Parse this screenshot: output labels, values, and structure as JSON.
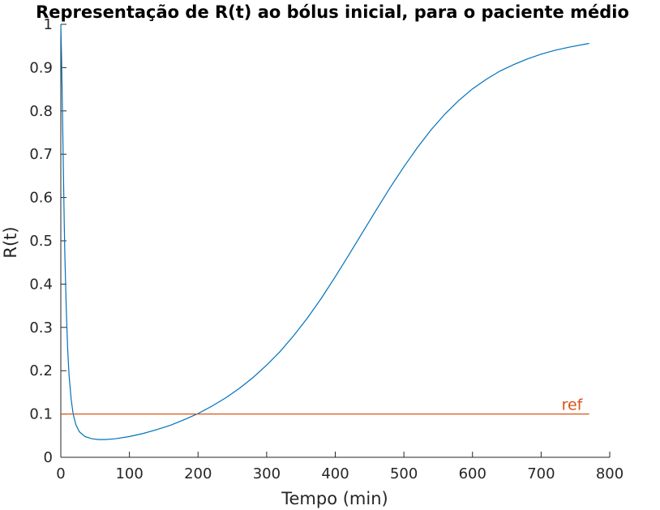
{
  "chart_data": {
    "type": "line",
    "title": "Representação de R(t) ao bólus inicial, para o paciente médio",
    "xlabel": "Tempo (min)",
    "ylabel": "R(t)",
    "xlim": [
      0,
      800
    ],
    "ylim": [
      0,
      1
    ],
    "xticks": [
      "0",
      "100",
      "200",
      "300",
      "400",
      "500",
      "600",
      "700",
      "800"
    ],
    "yticks": [
      "0",
      "0.1",
      "0.2",
      "0.3",
      "0.4",
      "0.5",
      "0.6",
      "0.7",
      "0.8",
      "0.9",
      "1"
    ],
    "grid": false,
    "series": [
      {
        "color": "#0072BD",
        "x": [
          0,
          1,
          2,
          3,
          4,
          5,
          6,
          8,
          10,
          12,
          15,
          18,
          22,
          27,
          35,
          45,
          55,
          65,
          80,
          100,
          120,
          140,
          160,
          180,
          200,
          220,
          240,
          260,
          280,
          300,
          320,
          340,
          360,
          380,
          400,
          420,
          440,
          460,
          480,
          500,
          520,
          540,
          560,
          580,
          600,
          620,
          640,
          660,
          680,
          700,
          720,
          740,
          770
        ],
        "y": [
          1.0,
          0.93,
          0.84,
          0.74,
          0.64,
          0.54,
          0.46,
          0.34,
          0.25,
          0.19,
          0.135,
          0.1,
          0.075,
          0.059,
          0.048,
          0.043,
          0.041,
          0.041,
          0.043,
          0.048,
          0.055,
          0.064,
          0.074,
          0.087,
          0.101,
          0.118,
          0.137,
          0.159,
          0.184,
          0.213,
          0.245,
          0.282,
          0.323,
          0.368,
          0.417,
          0.468,
          0.52,
          0.572,
          0.623,
          0.671,
          0.716,
          0.757,
          0.793,
          0.824,
          0.851,
          0.873,
          0.892,
          0.907,
          0.92,
          0.931,
          0.94,
          0.947,
          0.956
        ]
      },
      {
        "name": "ref",
        "color": "#D95319",
        "x": [
          0,
          770
        ],
        "y": [
          0.1,
          0.1
        ]
      }
    ],
    "annotations": [
      {
        "text": "ref",
        "x": 745,
        "y": 0.1,
        "color": "#D95319"
      }
    ]
  }
}
